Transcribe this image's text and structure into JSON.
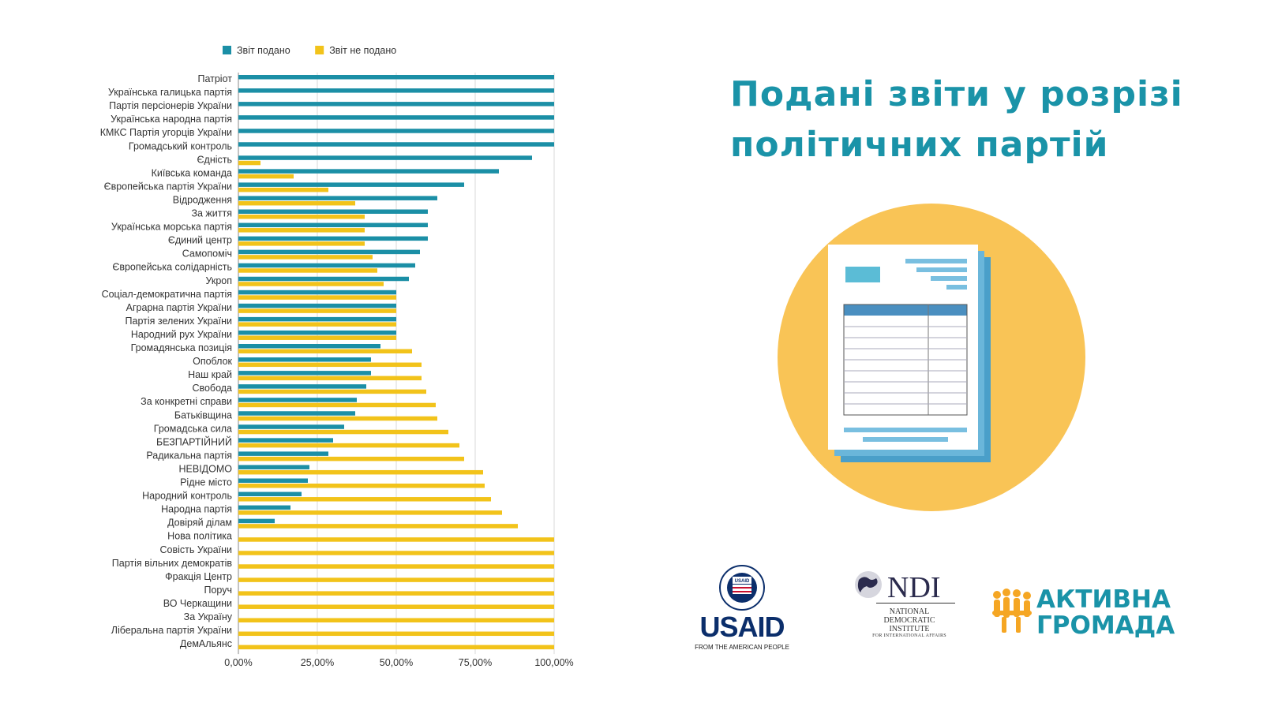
{
  "chart_data": {
    "type": "bar",
    "orientation": "horizontal",
    "legend": [
      "Звіт подано",
      "Звіт не подано"
    ],
    "legend_position": "top",
    "colors": [
      "#1b8fa6",
      "#f2c31a"
    ],
    "categories": [
      "Патріот",
      "Українська галицька партія",
      "Партія персіонерів України",
      "Українська народна партія",
      "КМКС Партія угорців України",
      "Громадський контроль",
      "Єдність",
      "Київська команда",
      "Європейська партія України",
      "Відродження",
      "За життя",
      "Українська морська партія",
      "Єдиний центр",
      "Самопоміч",
      "Європейська солідарність",
      "Укроп",
      "Соціал-демократична партія",
      "Аграрна партія України",
      "Партія зелених України",
      "Народний рух України",
      "Громадянська позиція",
      "Опоблок",
      "Наш край",
      "Свобода",
      "За конкретні справи",
      "Батьківщина",
      "Громадська сила",
      "БЕЗПАРТІЙНИЙ",
      "Радикальна партія",
      "НЕВІДОМО",
      "Рідне місто",
      "Народний контроль",
      "Народна партія",
      "Довіряй ділам",
      "Нова політика",
      "Совість України",
      "Партія вільних демократів",
      "Фракція Центр",
      "Поруч",
      "ВО Черкащини",
      "За Україну",
      "Ліберальна партія України",
      "ДемАльянс"
    ],
    "series": [
      {
        "name": "Звіт подано",
        "values": [
          100,
          100,
          100,
          100,
          100,
          100,
          93,
          82.5,
          71.5,
          63,
          60,
          60,
          60,
          57.5,
          56,
          54,
          50,
          50,
          50,
          50,
          45,
          42,
          42,
          40.5,
          37.5,
          37,
          33.5,
          30,
          28.5,
          22.5,
          22,
          20,
          16.5,
          11.5,
          0,
          0,
          0,
          0,
          0,
          0,
          0,
          0,
          0
        ]
      },
      {
        "name": "Звіт не подано",
        "values": [
          0,
          0,
          0,
          0,
          0,
          0,
          7,
          17.5,
          28.5,
          37,
          40,
          40,
          40,
          42.5,
          44,
          46,
          50,
          50,
          50,
          50,
          55,
          58,
          58,
          59.5,
          62.5,
          63,
          66.5,
          70,
          71.5,
          77.5,
          78,
          80,
          83.5,
          88.5,
          100,
          100,
          100,
          100,
          100,
          100,
          100,
          100,
          100
        ]
      }
    ],
    "xticks": [
      "0,00%",
      "25,00%",
      "50,00%",
      "75,00%",
      "100,00%"
    ],
    "xlim": [
      0,
      100
    ],
    "grid": true
  },
  "title": "Подані звіти у розрізі політичних партій",
  "illustration": "document-report-icon",
  "logos": {
    "usaid_word": "USAID",
    "usaid_tagline": "FROM THE AMERICAN PEOPLE",
    "usaid_seal": [
      "UNITED STATES AGENCY",
      "INTERNATIONAL DEVELOPMENT"
    ],
    "ndi_word": "NDI",
    "ndi_sub": "NATIONAL DEMOCRATIC INSTITUTE",
    "ndi_sub2": "FOR INTERNATIONAL AFFAIRS",
    "ag_line1": "АКТИВНА",
    "ag_line2": "ГРОМАДА"
  }
}
